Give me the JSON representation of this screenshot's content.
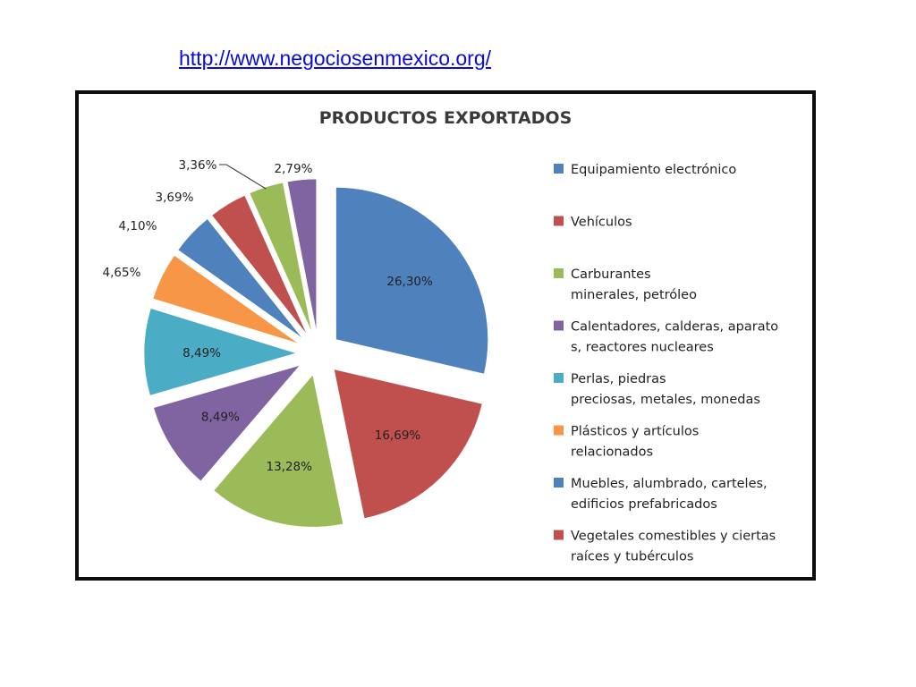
{
  "header": {
    "link_text": "http://www.negociosenmexico.org/"
  },
  "chart_data": {
    "type": "pie",
    "title": "PRODUCTOS EXPORTADOS",
    "exploded": true,
    "legend_position": "right",
    "slices": [
      {
        "label": "26,30%",
        "value": 26.3,
        "color": "#4f81bd"
      },
      {
        "label": "16,69%",
        "value": 16.69,
        "color": "#c0504d"
      },
      {
        "label": "13,28%",
        "value": 13.28,
        "color": "#9bbb59"
      },
      {
        "label": "8,49%",
        "value": 8.49,
        "color": "#8064a2"
      },
      {
        "label": "8,49%",
        "value": 8.49,
        "color": "#4bacc6"
      },
      {
        "label": "4,65%",
        "value": 4.65,
        "color": "#f79646"
      },
      {
        "label": "4,10%",
        "value": 4.1,
        "color": "#4f81bd"
      },
      {
        "label": "3,69%",
        "value": 3.69,
        "color": "#c0504d"
      },
      {
        "label": "3,36%",
        "value": 3.36,
        "color": "#9bbb59"
      },
      {
        "label": "2,79%",
        "value": 2.79,
        "color": "#8064a2"
      }
    ],
    "legend": [
      {
        "lines": [
          "Equipamiento electrónico"
        ],
        "color": "#4f81bd"
      },
      {
        "lines": [
          "Vehículos"
        ],
        "color": "#c0504d"
      },
      {
        "lines": [
          "Carburantes",
          "minerales, petróleo"
        ],
        "color": "#9bbb59"
      },
      {
        "lines": [
          "Calentadores, calderas, aparato",
          "s, reactores nucleares"
        ],
        "color": "#8064a2"
      },
      {
        "lines": [
          "Perlas, piedras",
          "preciosas, metales, monedas"
        ],
        "color": "#4bacc6"
      },
      {
        "lines": [
          "Plásticos y artículos",
          "relacionados"
        ],
        "color": "#f79646"
      },
      {
        "lines": [
          "Muebles, alumbrado, carteles,",
          "edificios prefabricados"
        ],
        "color": "#4f81bd"
      },
      {
        "lines": [
          "Vegetales comestibles y ciertas",
          "raíces y tubérculos"
        ],
        "color": "#c0504d"
      }
    ]
  }
}
